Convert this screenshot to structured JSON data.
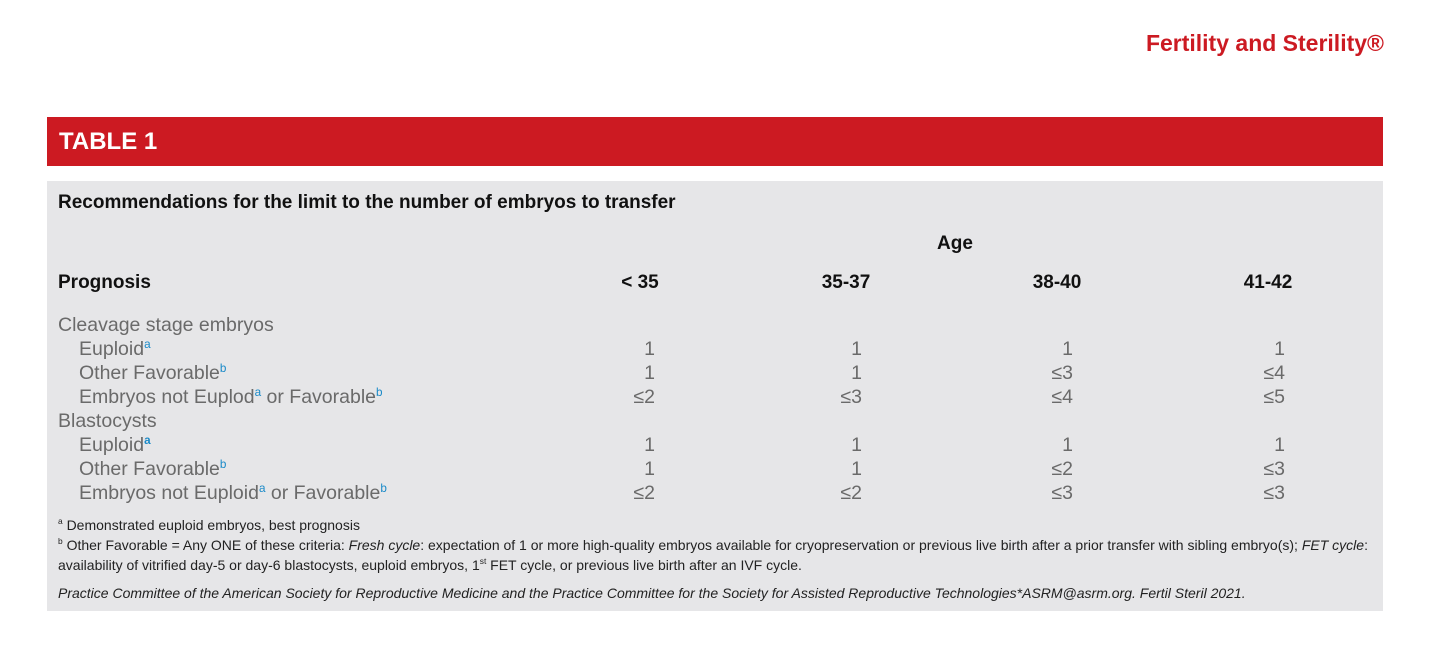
{
  "header": {
    "journal": "Fertility and Sterility®"
  },
  "table": {
    "label": "TABLE 1",
    "title": "Recommendations for the limit to the number of embryos to transfer",
    "group_header": "Age",
    "columns": [
      "Prognosis",
      "< 35",
      "35-37",
      "38-40",
      "41-42"
    ],
    "sections": [
      {
        "name": "Cleavage stage embryos",
        "rows": [
          {
            "label": [
              {
                "text": "Euploid",
                "sup": "a"
              }
            ],
            "cells": [
              "1",
              "1",
              "1",
              "1"
            ]
          },
          {
            "label": [
              {
                "text": "Other Favorable",
                "sup": "b"
              }
            ],
            "cells": [
              "1",
              "1",
              "≤3",
              "≤4"
            ]
          },
          {
            "label": [
              {
                "text": "Embryos not Euplod",
                "sup": "a"
              },
              {
                "text": "or Favorable",
                "sup": "b"
              }
            ],
            "cells": [
              "≤2",
              "≤3",
              "≤4",
              "≤5"
            ]
          }
        ]
      },
      {
        "name": "Blastocysts",
        "rows": [
          {
            "label": [
              {
                "text": "Euploid",
                "sup": "a",
                "sup_style": "bold"
              }
            ],
            "cells": [
              "1",
              "1",
              "1",
              "1"
            ]
          },
          {
            "label": [
              {
                "text": "Other Favorable",
                "sup": "b"
              }
            ],
            "cells": [
              "1",
              "1",
              "≤2",
              "≤3"
            ]
          },
          {
            "label": [
              {
                "text": "Embryos not Euploid",
                "sup": "a"
              },
              {
                "text": "or Favorable",
                "sup": "b"
              }
            ],
            "cells": [
              "≤2",
              "≤2",
              "≤3",
              "≤3"
            ]
          }
        ]
      }
    ],
    "footnotes": [
      {
        "mark": "a",
        "text": [
          {
            "text": "Demonstrated euploid embryos, best prognosis"
          }
        ]
      },
      {
        "mark": "b",
        "text": [
          {
            "text": "Other Favorable = Any ONE of these criteria: "
          },
          {
            "text": "Fresh cycle",
            "style": "italic"
          },
          {
            "text": ": expectation of 1 or more high-quality embryos available for cryopreservation or previous live birth after a prior transfer with sibling embryo(s); "
          },
          {
            "text": "FET cycle",
            "style": "italic"
          },
          {
            "text": ": availability of vitrified day-5 or day-6 blastocysts, euploid embryos, 1"
          },
          {
            "text": "st",
            "style": "sup"
          },
          {
            "text": " FET cycle, or previous live birth after an IVF cycle."
          }
        ]
      }
    ],
    "source": "Practice Committee of the American Society for Reproductive Medicine and the Practice Committee for the Society for Assisted Reproductive Technologies*ASRM@asrm.org. Fertil Steril 2021."
  }
}
